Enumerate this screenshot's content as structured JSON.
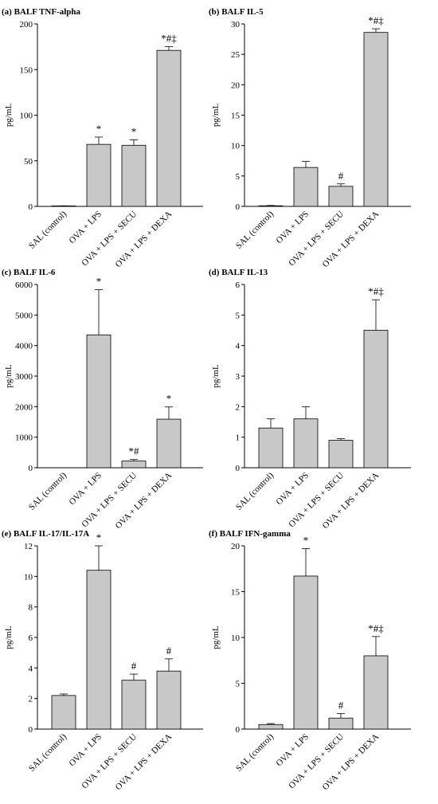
{
  "chart_data": [
    {
      "type": "bar",
      "title": "(a) BALF TNF-alpha",
      "ylabel": "pg/mL",
      "ylim": [
        0,
        200
      ],
      "yticks": [
        0,
        50,
        100,
        150,
        200
      ],
      "categories": [
        "SAL (control)",
        "OVA + LPS",
        "OVA + LPS + SECU",
        "OVA + LPS + DEXA"
      ],
      "values": [
        0.5,
        68,
        67,
        171
      ],
      "errors": [
        0.2,
        8,
        6,
        4
      ],
      "annotations": [
        "",
        "*",
        "*",
        "*#‡"
      ]
    },
    {
      "type": "bar",
      "title": "(b) BALF IL-5",
      "ylabel": "pg/mL",
      "ylim": [
        0,
        30
      ],
      "yticks": [
        0,
        5,
        10,
        15,
        20,
        25,
        30
      ],
      "categories": [
        "SAL (control)",
        "OVA + LPS",
        "OVA + LPS + SECU",
        "OVA + LPS + DEXA"
      ],
      "values": [
        0.1,
        6.4,
        3.3,
        28.6
      ],
      "errors": [
        0.05,
        1.0,
        0.4,
        0.6
      ],
      "annotations": [
        "",
        "",
        "#",
        "*#‡"
      ]
    },
    {
      "type": "bar",
      "title": "(c) BALF IL-6",
      "ylabel": "pg/mL",
      "ylim": [
        0,
        6000
      ],
      "yticks": [
        0,
        1000,
        2000,
        3000,
        4000,
        5000,
        6000
      ],
      "categories": [
        "SAL (control)",
        "OVA + LPS",
        "OVA + LPS + SECU",
        "OVA + LPS + DEXA"
      ],
      "values": [
        0,
        4350,
        220,
        1590
      ],
      "errors": [
        0,
        1480,
        50,
        400
      ],
      "annotations": [
        "",
        "*",
        "*#",
        "*"
      ]
    },
    {
      "type": "bar",
      "title": "(d) BALF IL-13",
      "ylabel": "pg/mL",
      "ylim": [
        0,
        6
      ],
      "yticks": [
        0,
        1,
        2,
        3,
        4,
        5,
        6
      ],
      "categories": [
        "SAL (control)",
        "OVA + LPS",
        "OVA + LPS + SECU",
        "OVA + LPS + DEXA"
      ],
      "values": [
        1.3,
        1.6,
        0.9,
        4.5
      ],
      "errors": [
        0.3,
        0.4,
        0.05,
        1.0
      ],
      "annotations": [
        "",
        "",
        "",
        "*#‡"
      ]
    },
    {
      "type": "bar",
      "title": "(e) BALF IL-17/IL-17A",
      "ylabel": "pg/mL",
      "ylim": [
        0,
        12
      ],
      "yticks": [
        0,
        2,
        4,
        6,
        8,
        10,
        12
      ],
      "categories": [
        "SAL (control)",
        "OVA + LPS",
        "OVA + LPS + SECU",
        "OVA + LPS + DEXA"
      ],
      "values": [
        2.2,
        10.4,
        3.2,
        3.8
      ],
      "errors": [
        0.1,
        1.6,
        0.4,
        0.8
      ],
      "annotations": [
        "",
        "*",
        "#",
        "#"
      ]
    },
    {
      "type": "bar",
      "title": "(f) BALF IFN-gamma",
      "ylabel": "pg/mL",
      "ylim": [
        0,
        20
      ],
      "yticks": [
        0,
        5,
        10,
        15,
        20
      ],
      "categories": [
        "SAL (control)",
        "OVA + LPS",
        "OVA + LPS + SECU",
        "OVA + LPS + DEXA"
      ],
      "values": [
        0.5,
        16.7,
        1.2,
        8.0
      ],
      "errors": [
        0.1,
        3.0,
        0.5,
        2.1
      ],
      "annotations": [
        "",
        "*",
        "#",
        "*#‡"
      ]
    }
  ],
  "style": {
    "bar_color": "#c8c8c8",
    "bar_stroke": "#000000"
  }
}
